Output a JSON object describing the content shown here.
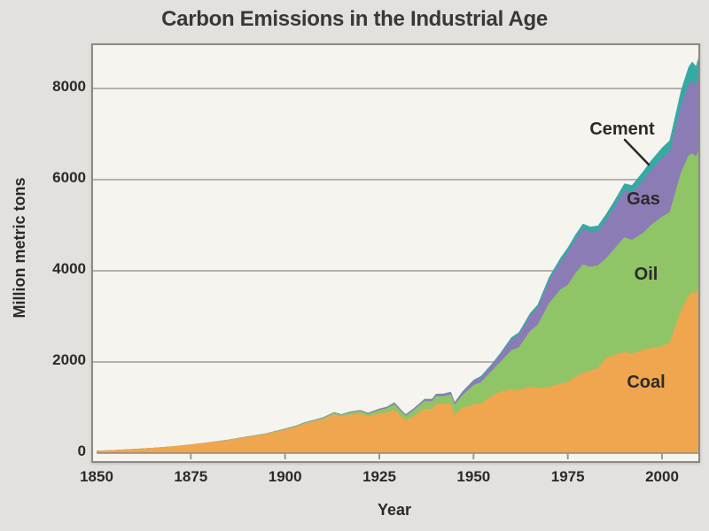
{
  "title": "Carbon Emissions in the Industrial Age",
  "axes": {
    "y": {
      "label": "Million metric tons",
      "tick_labels": [
        "0",
        "2000",
        "4000",
        "6000",
        "8000"
      ],
      "tick_values": [
        0,
        2000,
        4000,
        6000,
        8000
      ],
      "max": 9000
    },
    "x": {
      "label": "Year",
      "tick_labels": [
        "1850",
        "1875",
        "1900",
        "1925",
        "1950",
        "1975",
        "2000"
      ],
      "tick_values": [
        1850,
        1875,
        1900,
        1925,
        1950,
        1975,
        2000
      ],
      "min": 1850,
      "max": 2010
    }
  },
  "annotations": {
    "cement_label": "Cement",
    "gas_label": "Gas",
    "oil_label": "Oil",
    "coal_label": "Coal"
  },
  "colors": {
    "background": "#e3e1de",
    "panel_background": "#f6f4ef",
    "panel_border": "#8d8a85",
    "gridline": "#b5b2ad",
    "axis_line": "#8d8a85",
    "tick": "#9b9894",
    "text": "#2b2a28",
    "title_text": "#3a3835",
    "coal": "#f0a54f",
    "oil": "#8fc566",
    "gas": "#8c7cb6",
    "cement": "#35aaa4",
    "pointer_line": "#2b2a28"
  },
  "chart_data": {
    "type": "area",
    "stacked": true,
    "title": "Carbon Emissions in the Industrial Age",
    "xlabel": "Year",
    "ylabel": "Million metric tons",
    "xlim": [
      1850,
      2010
    ],
    "ylim": [
      0,
      9000
    ],
    "grid": "horizontal",
    "legend_position": "labels-on-areas",
    "x": [
      1850,
      1855,
      1860,
      1865,
      1870,
      1875,
      1880,
      1885,
      1890,
      1895,
      1900,
      1903,
      1905,
      1908,
      1910,
      1913,
      1915,
      1917,
      1920,
      1922,
      1925,
      1927,
      1929,
      1931,
      1932,
      1934,
      1937,
      1939,
      1940,
      1942,
      1944,
      1945,
      1947,
      1950,
      1952,
      1955,
      1957,
      1960,
      1962,
      1965,
      1967,
      1970,
      1973,
      1975,
      1977,
      1979,
      1981,
      1983,
      1985,
      1987,
      1990,
      1992,
      1995,
      1997,
      2000,
      2002,
      2005,
      2007,
      2008,
      2009,
      2010
    ],
    "series": [
      {
        "name": "Coal",
        "color": "#f0a54f",
        "values": [
          54,
          68,
          91,
          116,
          147,
          188,
          236,
          288,
          356,
          420,
          515,
          580,
          640,
          700,
          743,
          850,
          800,
          845,
          868,
          800,
          873,
          890,
          959,
          790,
          717,
          810,
          979,
          970,
          1068,
          1090,
          1075,
          840,
          990,
          1070,
          1090,
          1260,
          1350,
          1410,
          1380,
          1460,
          1430,
          1450,
          1530,
          1560,
          1670,
          1760,
          1810,
          1870,
          2076,
          2150,
          2218,
          2185,
          2270,
          2300,
          2350,
          2420,
          3130,
          3450,
          3540,
          3520,
          3640
        ]
      },
      {
        "name": "Oil",
        "color": "#8fc566",
        "values": [
          0,
          0,
          0,
          0,
          1,
          2,
          3,
          5,
          8,
          11,
          16,
          19,
          23,
          26,
          28,
          33,
          38,
          45,
          58,
          62,
          77,
          95,
          119,
          110,
          106,
          125,
          165,
          171,
          181,
          160,
          210,
          222,
          280,
          423,
          470,
          564,
          640,
          849,
          940,
          1222,
          1380,
          1838,
          2060,
          2131,
          2280,
          2380,
          2280,
          2252,
          2186,
          2300,
          2518,
          2495,
          2563,
          2700,
          2838,
          2860,
          3027,
          3080,
          3040,
          2990,
          3060
        ]
      },
      {
        "name": "Gas",
        "color": "#8c7cb6",
        "values": [
          0,
          0,
          0,
          0,
          0,
          0,
          1,
          2,
          3,
          4,
          6,
          8,
          9,
          11,
          12,
          14,
          15,
          16,
          18,
          21,
          25,
          30,
          35,
          32,
          30,
          36,
          43,
          46,
          48,
          50,
          56,
          58,
          70,
          97,
          110,
          123,
          160,
          235,
          280,
          332,
          380,
          493,
          600,
          727,
          740,
          780,
          760,
          746,
          835,
          900,
          1026,
          1040,
          1153,
          1200,
          1288,
          1330,
          1479,
          1550,
          1600,
          1570,
          1640
        ]
      },
      {
        "name": "Cement",
        "color": "#35aaa4",
        "values": [
          0,
          0,
          0,
          0,
          0,
          0,
          0,
          0,
          0,
          0,
          0,
          0,
          0,
          0,
          1,
          1,
          1,
          1,
          1,
          2,
          2,
          2,
          3,
          2,
          2,
          3,
          4,
          4,
          4,
          4,
          3,
          3,
          10,
          18,
          24,
          30,
          36,
          43,
          50,
          59,
          68,
          78,
          90,
          95,
          105,
          115,
          118,
          125,
          131,
          140,
          157,
          160,
          197,
          210,
          226,
          250,
          320,
          390,
          410,
          410,
          435
        ]
      }
    ]
  }
}
